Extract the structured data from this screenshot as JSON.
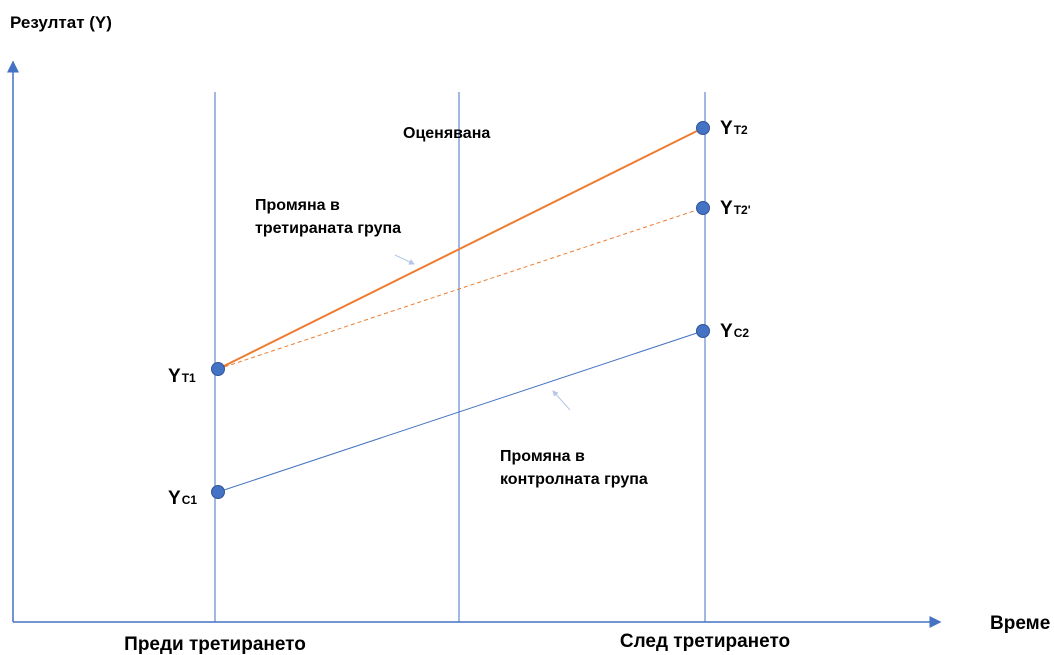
{
  "axes": {
    "y_label": "Резултат (Y)",
    "x_label": "Време"
  },
  "periods": [
    "Преди третирането",
    "След третирането"
  ],
  "marker": "Оценявана",
  "annotations": [
    {
      "lines": [
        "Промяна в",
        "третираната група"
      ]
    },
    {
      "lines": [
        "Промяна в",
        "контролната група"
      ]
    }
  ],
  "points": [
    {
      "main": "Y",
      "sub": "T1"
    },
    {
      "main": "Y",
      "sub": "C1"
    },
    {
      "main": "Y",
      "sub": "T2"
    },
    {
      "main": "Y",
      "sub": "T2'"
    },
    {
      "main": "Y",
      "sub": "C2"
    }
  ]
}
